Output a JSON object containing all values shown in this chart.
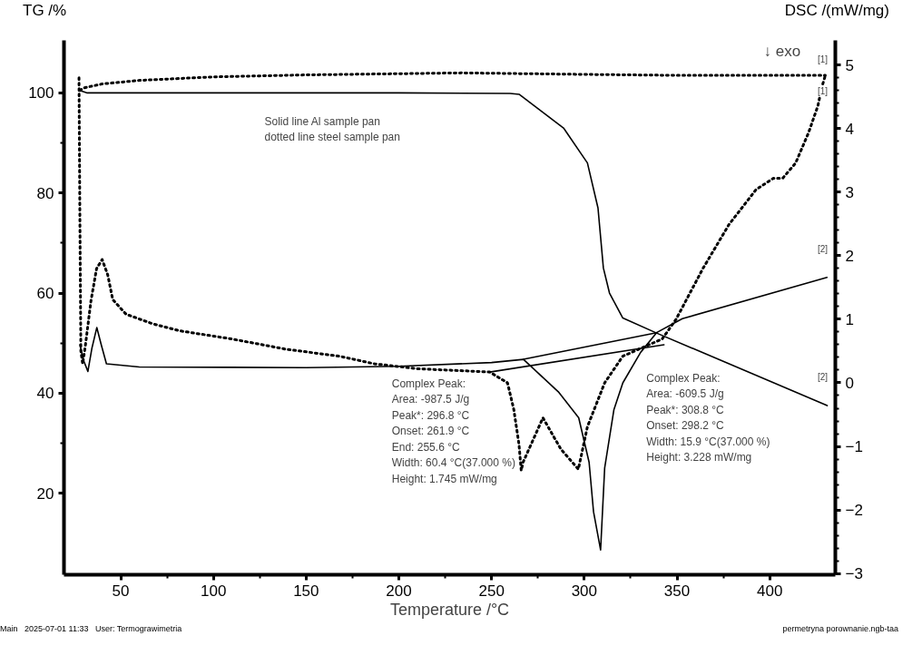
{
  "chart_data": {
    "type": "line",
    "xlabel": "Temperature /°C",
    "ylabel": "TG /%",
    "y2label": "DSC /(mW/mg)",
    "xlim": [
      19.4,
      435.4
    ],
    "xticks": [
      50,
      100,
      150,
      200,
      250,
      300,
      350,
      400
    ],
    "ylim": [
      3.7,
      110.5
    ],
    "yticks": [
      20,
      40,
      60,
      80,
      100
    ],
    "y2lim": [
      -3.02,
      5.39
    ],
    "y2ticks": [
      -3,
      -2,
      -1,
      0,
      1,
      2,
      3,
      4,
      5
    ],
    "grid": false,
    "marker": "none",
    "series": [
      {
        "color": "#000000",
        "line_style": "solid",
        "x": [
          28,
          32,
          60,
          100,
          150,
          200,
          260,
          265,
          288.8,
          301.7,
          307.4,
          310.3,
          313.6,
          320.8,
          339,
          431
        ],
        "values": [
          100.5,
          100,
          100,
          100,
          100,
          100,
          99.9,
          99.7,
          93,
          86,
          77,
          65,
          60,
          55,
          52,
          37.5
        ]
      },
      {
        "color": "#000000",
        "line_style": "dotted",
        "x": [
          28,
          30,
          40,
          60,
          100,
          150,
          234,
          300,
          350,
          400,
          430
        ],
        "values": [
          100.5,
          101,
          101.8,
          102.5,
          103.2,
          103.6,
          104,
          103.7,
          103.5,
          103.5,
          103.5
        ]
      },
      {
        "color": "#000000",
        "line_style": "solid",
        "axis": "y2",
        "x": [
          28,
          30,
          32.3,
          34.5,
          37.1,
          39.5,
          42.3,
          60,
          150,
          200,
          250,
          267.2,
          286,
          297,
          302.6,
          305,
          308.8,
          311,
          316,
          320.8,
          330.4,
          339,
          352.9,
          430.9
        ],
        "values": [
          0.6,
          0.35,
          0.18,
          0.55,
          0.87,
          0.6,
          0.3,
          0.25,
          0.24,
          0.26,
          0.32,
          0.37,
          -0.14,
          -0.55,
          -1.25,
          -2.03,
          -2.63,
          -1.34,
          -0.42,
          0.0,
          0.48,
          0.79,
          1.01,
          1.66
        ]
      },
      {
        "color": "#000000",
        "line_style": "dotted",
        "axis": "y2",
        "x": [
          27.5,
          28,
          28.5,
          29.5,
          31,
          34,
          37,
          40,
          43,
          45.7,
          52.9,
          67.2,
          81.6,
          110,
          139,
          167.7,
          186.8,
          210.8,
          234.7,
          249,
          258.6,
          262,
          264.8,
          266,
          267,
          277.7,
          287.3,
          296.8,
          301.7,
          311,
          320.8,
          342,
          349.5,
          364,
          378,
          392.6,
          402,
          407,
          414,
          421,
          426,
          428,
          430
        ],
        "values": [
          4.8,
          2.5,
          0.5,
          0.3,
          0.6,
          1.3,
          1.8,
          1.94,
          1.7,
          1.31,
          1.08,
          0.93,
          0.82,
          0.69,
          0.53,
          0.42,
          0.3,
          0.22,
          0.19,
          0.17,
          0.0,
          -0.42,
          -0.97,
          -1.38,
          -1.25,
          -0.55,
          -1.04,
          -1.36,
          -0.69,
          0.0,
          0.42,
          0.69,
          1.0,
          1.8,
          2.49,
          3.04,
          3.22,
          3.22,
          3.46,
          3.94,
          4.36,
          4.64,
          4.84
        ]
      },
      {
        "color": "#000000",
        "line_style": "solid",
        "axis": "y2",
        "x": [
          267.2,
          339
        ],
        "values": [
          0.37,
          0.79
        ]
      },
      {
        "color": "#000000",
        "line_style": "solid",
        "axis": "y2",
        "x": [
          249,
          343
        ],
        "values": [
          0.17,
          0.6
        ]
      }
    ],
    "annotations": [
      "Solid line Al sample pan\n dotted line steel sample pan",
      "↓ exo",
      "Complex Peak:\nArea:     -987.5 J/g\nPeak*:     296.8 °C\nOnset:     261.9 °C\nEnd:        255.6 °C\nWidth:        60.4 °C(37.000 %)\nHeight:       1.745 mW/mg",
      "Complex Peak:\nArea:     -609.5 J/g\nPeak*:     308.8 °C\nOnset:     298.2 °C\nWidth:        15.9 °C(37.000 %)\nHeight:       3.228 mW/mg",
      "Main   2025-07-01 11:33   User: Termograwimetria",
      "permetryna porownanie.ngb-taa",
      "[1]",
      "[1]",
      "[2]",
      "[2]"
    ]
  }
}
